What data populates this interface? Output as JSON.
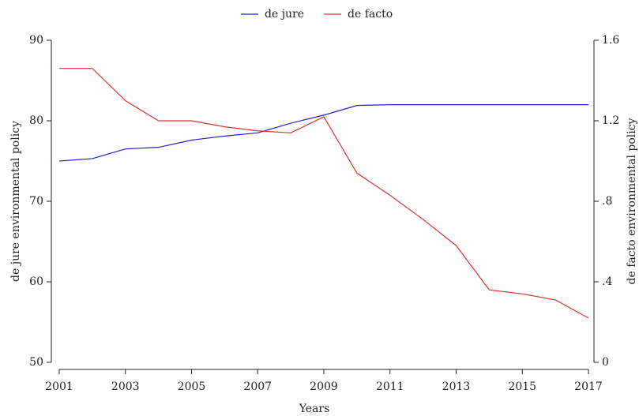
{
  "chart_data": {
    "type": "line",
    "x_label": "Years",
    "y_label": "de jure environmental policy",
    "y2_label": "de facto environmental policy",
    "x": [
      2001,
      2002,
      2003,
      2004,
      2005,
      2006,
      2007,
      2008,
      2009,
      2010,
      2011,
      2012,
      2013,
      2014,
      2015,
      2016,
      2017
    ],
    "series": [
      {
        "name": "de jure",
        "color": "#2222cc",
        "values": [
          75.0,
          75.3,
          76.5,
          76.7,
          77.6,
          78.1,
          78.5,
          79.7,
          80.7,
          81.9,
          82.0,
          82.0,
          82.0,
          82.0,
          82.0,
          82.0,
          82.0
        ]
      },
      {
        "name": "de facto",
        "color": "#dd3333",
        "axis": "y2",
        "values": [
          1.46,
          1.46,
          1.3,
          1.2,
          1.2,
          1.17,
          1.15,
          1.14,
          1.22,
          0.94,
          0.83,
          0.71,
          0.58,
          0.36,
          0.34,
          0.31,
          0.22
        ]
      }
    ],
    "xlim": [
      2001,
      2017
    ],
    "xticks": [
      2001,
      2003,
      2005,
      2007,
      2009,
      2011,
      2013,
      2015,
      2017
    ],
    "ylim": [
      50,
      90
    ],
    "yticks": [
      50,
      60,
      70,
      80,
      90
    ],
    "y2lim": [
      0,
      1.6
    ],
    "y2ticks": [
      0,
      {
        "value": 0.4,
        "label": ".4"
      },
      {
        "value": 0.8,
        "label": ".8"
      },
      1.2,
      1.6
    ],
    "legend": "top"
  }
}
